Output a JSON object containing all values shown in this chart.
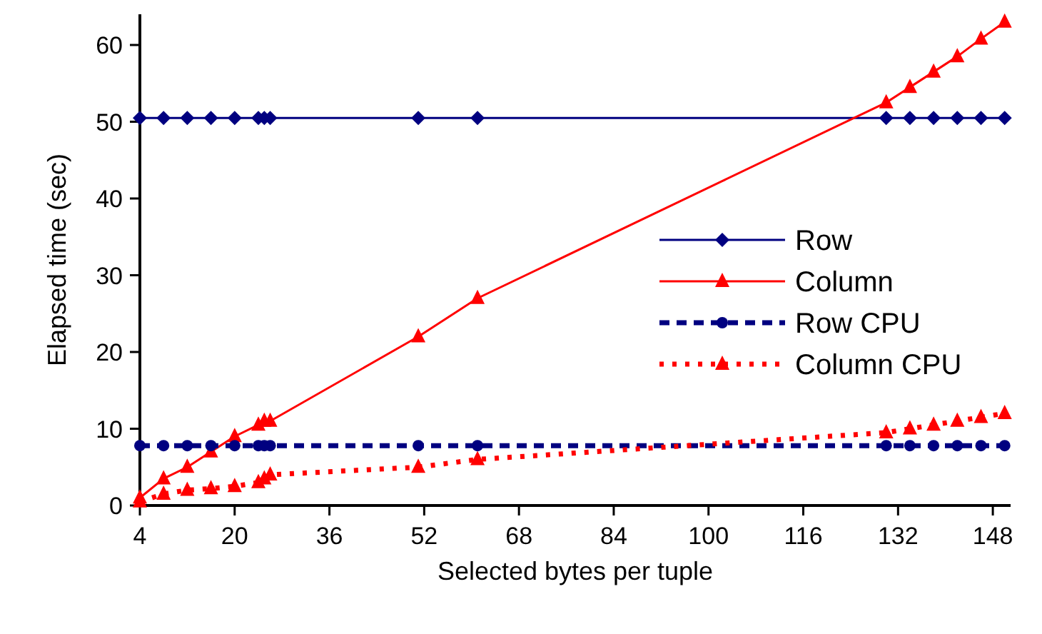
{
  "chart_data": {
    "type": "line",
    "xlabel": "Selected bytes per tuple",
    "ylabel": "Elapsed time (sec)",
    "x": [
      4,
      8,
      12,
      16,
      20,
      24,
      25,
      26,
      51,
      61,
      130,
      134,
      138,
      142,
      146,
      150
    ],
    "xlim": [
      4,
      151
    ],
    "xticks": [
      4,
      20,
      36,
      52,
      68,
      84,
      100,
      116,
      132,
      148
    ],
    "ylim": [
      0,
      64
    ],
    "yticks": [
      0,
      10,
      20,
      30,
      40,
      50,
      60
    ],
    "grid": false,
    "legend": "right",
    "series": [
      {
        "name": "Row",
        "color": "#000080",
        "marker": "diamond",
        "line_style": "solid",
        "values": [
          50.5,
          50.5,
          50.5,
          50.5,
          50.5,
          50.5,
          50.5,
          50.5,
          50.5,
          50.5,
          50.5,
          50.5,
          50.5,
          50.5,
          50.5,
          50.5
        ]
      },
      {
        "name": "Column",
        "color": "#ff0000",
        "marker": "triangle",
        "line_style": "solid",
        "values": [
          1,
          3.5,
          5,
          7,
          9,
          10.5,
          11,
          11,
          22,
          27,
          52.5,
          54.5,
          56.5,
          58.5,
          60.8,
          63
        ]
      },
      {
        "name": "Row CPU",
        "color": "#000080",
        "marker": "circle",
        "line_style": "dashed",
        "values": [
          7.8,
          7.8,
          7.8,
          7.8,
          7.8,
          7.8,
          7.8,
          7.8,
          7.8,
          7.8,
          7.8,
          7.8,
          7.8,
          7.8,
          7.8,
          7.8
        ]
      },
      {
        "name": "Column CPU",
        "color": "#ff0000",
        "marker": "triangle",
        "line_style": "dotted",
        "values": [
          0.5,
          1.5,
          2,
          2.2,
          2.5,
          3,
          3.5,
          4,
          5,
          6,
          9.5,
          10,
          10.5,
          11,
          11.5,
          12
        ]
      }
    ]
  }
}
